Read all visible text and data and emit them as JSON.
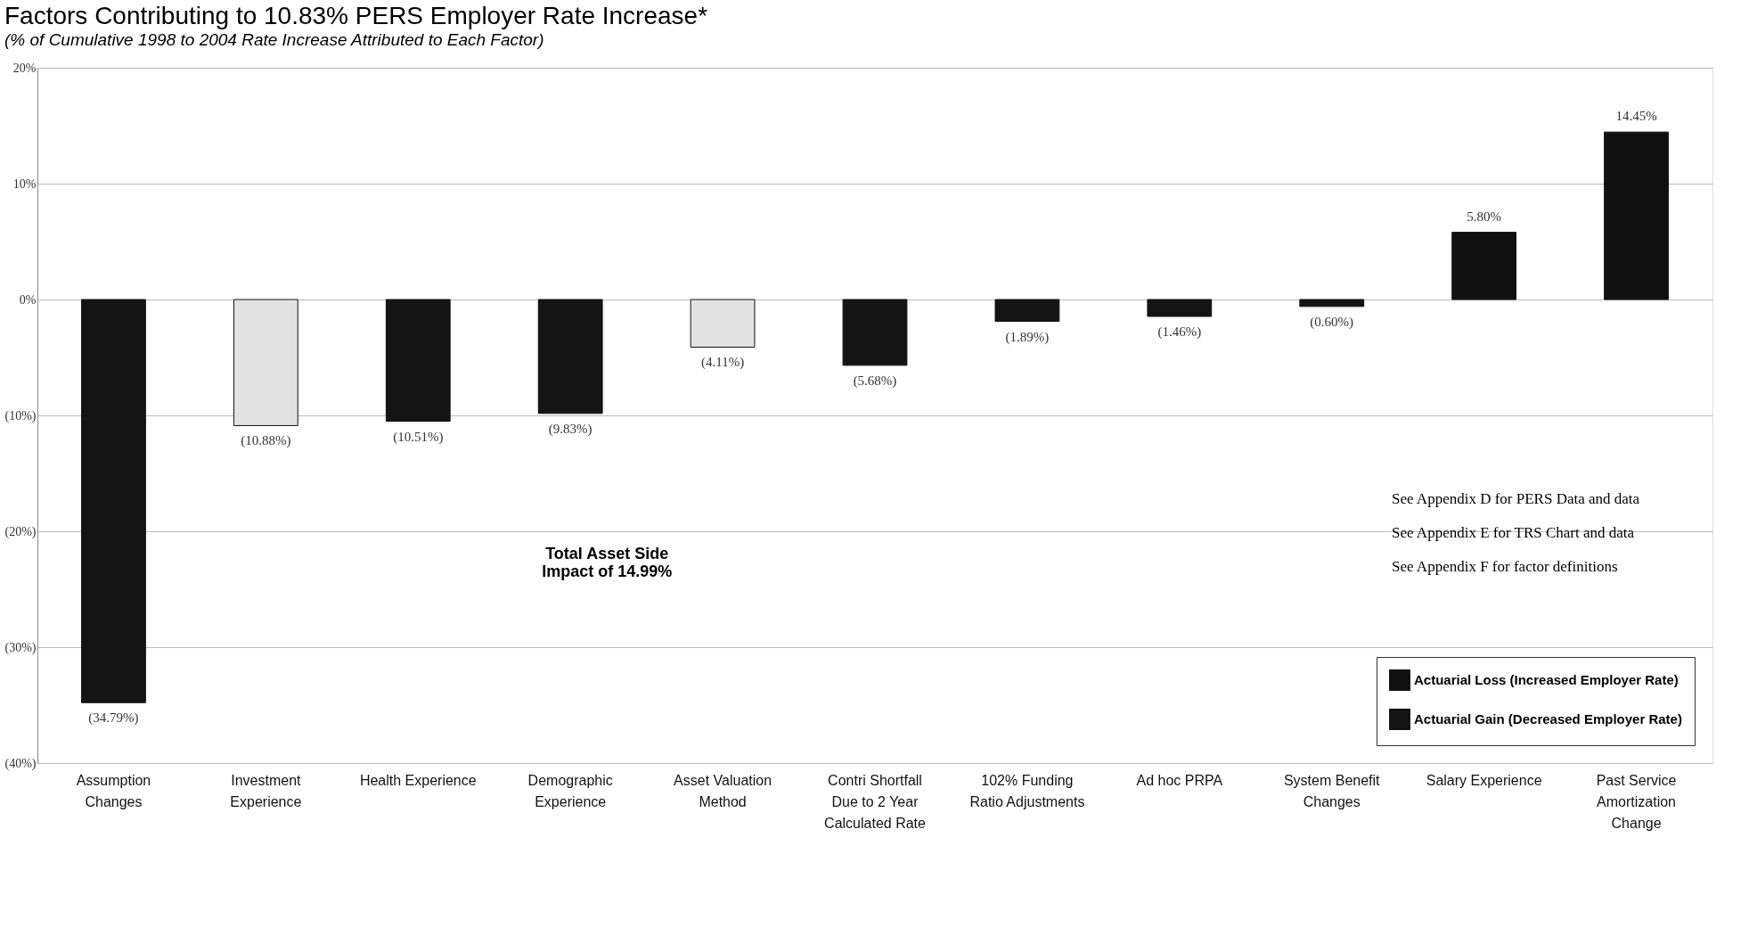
{
  "chart_data": {
    "type": "bar",
    "title": "Factors Contributing to 10.83% PERS Employer Rate Increase*",
    "subtitle": "(% of Cumulative 1998 to 2004 Rate Increase Attributed to Each Factor)",
    "categories": [
      "Assumption Changes",
      "Investment Experience",
      "Health Experience",
      "Demographic Experience",
      "Asset Valuation Method",
      "Contri Shortfall Due to 2 Year Calculated Rate",
      "102% Funding Ratio Adjustments",
      "Ad hoc PRPA",
      "System Benefit Changes",
      "Salary Experience",
      "Past Service Amortization Change"
    ],
    "series": [
      {
        "name": "Actuarial Loss (Increased Employer Rate)",
        "color": "#111111",
        "values": [
          null,
          null,
          null,
          null,
          null,
          null,
          null,
          null,
          null,
          5.8,
          14.45
        ]
      },
      {
        "name": "Actuarial Gain (Decreased Employer Rate)",
        "color": "#141414",
        "values": [
          -34.79,
          null,
          -10.51,
          -9.83,
          null,
          -5.68,
          -1.89,
          -1.46,
          -0.6,
          null,
          null
        ]
      },
      {
        "color": "#e2e2e2",
        "values": [
          null,
          -10.88,
          null,
          null,
          -4.11,
          null,
          null,
          null,
          null,
          null,
          null
        ]
      }
    ],
    "value_labels": [
      "(34.79%)",
      "(10.88%)",
      "(10.51%)",
      "(9.83%)",
      "(4.11%)",
      "(5.68%)",
      "(1.89%)",
      "(1.46%)",
      "(0.60%)",
      "5.80%",
      "14.45%"
    ],
    "ylim": [
      -40,
      20
    ],
    "yticks": [
      {
        "value": -40,
        "label": "(40%)"
      },
      {
        "value": -30,
        "label": "(30%)"
      },
      {
        "value": -20,
        "label": "(20%)"
      },
      {
        "value": -10,
        "label": "(10%)"
      },
      {
        "value": 0,
        "label": "0%"
      },
      {
        "value": 10,
        "label": "10%"
      },
      {
        "value": 20,
        "label": "20%"
      }
    ],
    "grid": "y",
    "legend": "bottom right",
    "annotations": [
      "Total Asset Side Impact of 14.99%",
      "See Appendix D for PERS Data and data",
      "See Appendix E for TRS Chart and data",
      "See Appendix F for factor definitions"
    ]
  }
}
